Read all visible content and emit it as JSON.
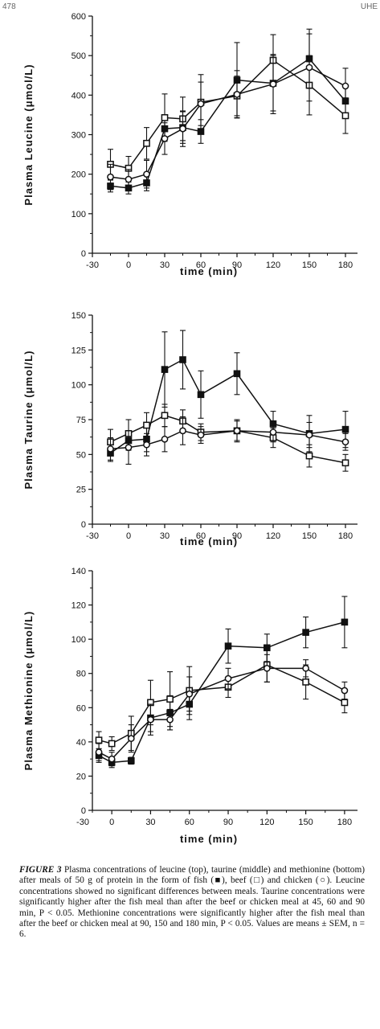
{
  "page": {
    "number": "478",
    "code": "UHE"
  },
  "chart_data": [
    {
      "type": "line",
      "title": "",
      "xlabel": "time  (min)",
      "ylabel": "Plasma  Leucine  (μmol/L)",
      "xlim": [
        -30,
        190
      ],
      "ylim": [
        0,
        600
      ],
      "xticks": [
        -30,
        0,
        30,
        60,
        90,
        120,
        150,
        180
      ],
      "yticks": [
        0,
        100,
        200,
        300,
        400,
        500,
        600
      ],
      "x": [
        -15,
        0,
        15,
        30,
        45,
        60,
        90,
        120,
        150,
        180
      ],
      "series": [
        {
          "name": "fish",
          "marker": "filled-square",
          "values": [
            170,
            165,
            178,
            315,
            318,
            308,
            438,
            430,
            492,
            385
          ],
          "errors": [
            15,
            15,
            20,
            30,
            40,
            30,
            95,
            70,
            75,
            40
          ]
        },
        {
          "name": "beef",
          "marker": "open-square",
          "values": [
            225,
            215,
            278,
            343,
            340,
            382,
            398,
            488,
            425,
            348
          ],
          "errors": [
            38,
            30,
            40,
            60,
            55,
            70,
            50,
            65,
            75,
            45
          ]
        },
        {
          "name": "chicken",
          "marker": "open-circle",
          "values": [
            193,
            187,
            200,
            290,
            315,
            378,
            402,
            428,
            470,
            423
          ],
          "errors": [
            32,
            25,
            35,
            40,
            45,
            55,
            60,
            75,
            85,
            45
          ]
        }
      ]
    },
    {
      "type": "line",
      "title": "",
      "xlabel": "time  (min)",
      "ylabel": "Plasma  Taurine  (μmol/L)",
      "xlim": [
        -30,
        190
      ],
      "ylim": [
        0,
        150
      ],
      "xticks": [
        -30,
        0,
        30,
        60,
        90,
        120,
        150,
        180
      ],
      "yticks": [
        0,
        25,
        50,
        75,
        100,
        125,
        150
      ],
      "x": [
        -15,
        0,
        15,
        30,
        45,
        60,
        90,
        120,
        150,
        180
      ],
      "series": [
        {
          "name": "fish",
          "marker": "filled-square",
          "values": [
            51,
            60,
            61,
            111,
            118,
            93,
            108,
            72,
            65,
            68
          ],
          "errors": [
            6,
            7,
            9,
            27,
            21,
            17,
            15,
            9,
            13,
            13
          ]
        },
        {
          "name": "beef",
          "marker": "open-square",
          "values": [
            59,
            65,
            71,
            78,
            74,
            66,
            67,
            62,
            49,
            44
          ],
          "errors": [
            9,
            10,
            9,
            8,
            8,
            6,
            7,
            7,
            8,
            6
          ]
        },
        {
          "name": "chicken",
          "marker": "open-circle",
          "values": [
            54,
            55,
            57,
            61,
            67,
            64,
            67,
            66,
            64,
            59
          ],
          "errors": [
            8,
            12,
            8,
            9,
            10,
            6,
            8,
            7,
            9,
            6
          ]
        }
      ]
    },
    {
      "type": "line",
      "title": "",
      "xlabel": "time  (min)",
      "ylabel": "Plasma  Methionine  (μmol/L)",
      "xlim": [
        -15,
        190
      ],
      "ylim": [
        0,
        140
      ],
      "xticks": [
        -30,
        0,
        30,
        60,
        90,
        120,
        150,
        180
      ],
      "yticks": [
        0,
        20,
        40,
        60,
        80,
        100,
        120,
        140
      ],
      "x": [
        -10,
        0,
        15,
        30,
        45,
        60,
        90,
        120,
        150,
        180
      ],
      "series": [
        {
          "name": "fish",
          "marker": "filled-square",
          "values": [
            32,
            28,
            29,
            54,
            57,
            62,
            96,
            95,
            104,
            110
          ],
          "errors": [
            4,
            3,
            2,
            8,
            10,
            9,
            10,
            8,
            9,
            15
          ]
        },
        {
          "name": "beef",
          "marker": "open-square",
          "values": [
            41,
            39,
            45,
            63,
            65,
            70,
            72,
            85,
            75,
            63
          ],
          "errors": [
            5,
            4,
            10,
            13,
            16,
            14,
            6,
            10,
            10,
            6
          ]
        },
        {
          "name": "chicken",
          "marker": "open-circle",
          "values": [
            34,
            30,
            42,
            53,
            53,
            68,
            77,
            83,
            83,
            70
          ],
          "errors": [
            5,
            4,
            8,
            9,
            6,
            10,
            6,
            8,
            5,
            5
          ]
        }
      ]
    }
  ],
  "caption": {
    "lead": "FIGURE 3",
    "text": " Plasma concentrations of leucine (top), taurine (middle) and methionine (bottom) after meals of 50 g of protein in the form of fish (■), beef (□) and chicken (○). Leucine concentrations showed no significant differences between meals. Taurine concentrations were significantly higher after the fish meal than after the beef or chicken meal at 45, 60 and 90 min, P < 0.05. Methionine concentrations were significantly higher after the fish meal than after the beef or chicken meal at 90, 150 and 180 min, P < 0.05. Values are means ± SEM, n = 6."
  }
}
